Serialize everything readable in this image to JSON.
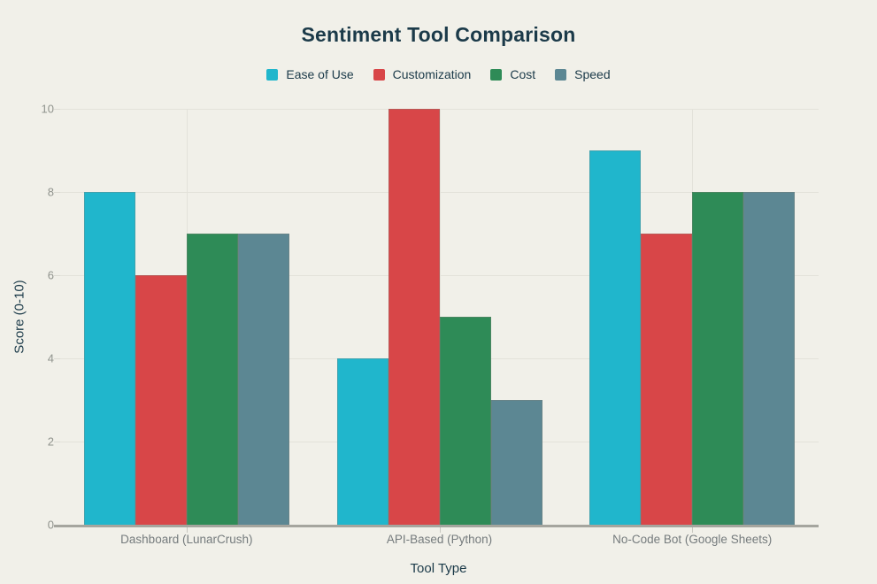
{
  "page": {
    "background_color": "#f1f0e9",
    "text_dark_color": "#1b3a49",
    "gridline_color": "#e3e2da",
    "axis_line_color": "#a5a59e",
    "y_tick_text_color": "#90938d",
    "x_tick_text_color": "#757b7d"
  },
  "chart_data": {
    "type": "bar",
    "title": "Sentiment Tool Comparison",
    "xlabel": "Tool Type",
    "ylabel": "Score (0-10)",
    "categories": [
      "Dashboard (LunarCrush)",
      "API-Based (Python)",
      "No-Code Bot (Google Sheets)"
    ],
    "series": [
      {
        "name": "Ease of Use",
        "color": "#20b6cc",
        "values": [
          8,
          4,
          9
        ]
      },
      {
        "name": "Customization",
        "color": "#d84648",
        "values": [
          6,
          10,
          7
        ]
      },
      {
        "name": "Cost",
        "color": "#2e8b57",
        "values": [
          7,
          5,
          8
        ]
      },
      {
        "name": "Speed",
        "color": "#5c8793",
        "values": [
          7,
          3,
          8
        ]
      }
    ],
    "ylim": [
      0,
      10
    ],
    "yticks": [
      0,
      2,
      4,
      6,
      8,
      10
    ],
    "grid": true,
    "legend_position": "top",
    "legend_swatch_shape": "square"
  }
}
